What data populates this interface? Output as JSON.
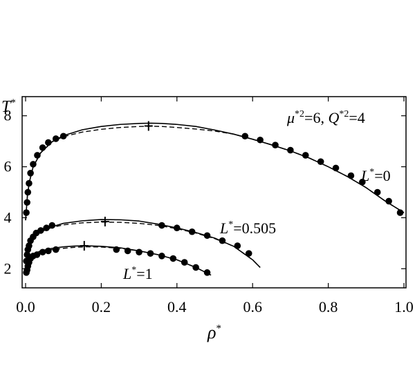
{
  "chart_data": {
    "type": "scatter",
    "xlabel": "ρ",
    "xlabel_sup": "*",
    "ylabel": "T",
    "ylabel_sup": "*",
    "xlim": [
      0.0,
      1.0
    ],
    "ylim": [
      1.25,
      8.75
    ],
    "x_ticks": [
      0.0,
      0.2,
      0.4,
      0.6,
      0.8,
      1.0
    ],
    "x_tick_labels": [
      "0.0",
      "0.2",
      "0.4",
      "0.6",
      "0.8",
      "1.0"
    ],
    "y_ticks": [
      2,
      4,
      6,
      8
    ],
    "y_tick_labels": [
      "2",
      "4",
      "6",
      "8"
    ],
    "grid": false,
    "annotation": {
      "mu_sym": "μ",
      "mu_sup": "*2",
      "mu_val": "=6, ",
      "q_sym": "Q",
      "q_sup": "*2",
      "q_val": "=4"
    },
    "series": [
      {
        "label_sym": "L",
        "label_sup": "*",
        "label_val": "=0",
        "points": [
          [
            0.002,
            4.2
          ],
          [
            0.004,
            4.6
          ],
          [
            0.006,
            5.0
          ],
          [
            0.009,
            5.35
          ],
          [
            0.013,
            5.75
          ],
          [
            0.02,
            6.1
          ],
          [
            0.031,
            6.45
          ],
          [
            0.045,
            6.75
          ],
          [
            0.06,
            6.95
          ],
          [
            0.08,
            7.1
          ],
          [
            0.1,
            7.2
          ],
          [
            0.58,
            7.2
          ],
          [
            0.62,
            7.05
          ],
          [
            0.66,
            6.85
          ],
          [
            0.7,
            6.65
          ],
          [
            0.74,
            6.45
          ],
          [
            0.78,
            6.2
          ],
          [
            0.82,
            5.95
          ],
          [
            0.86,
            5.65
          ],
          [
            0.89,
            5.4
          ],
          [
            0.93,
            5.0
          ],
          [
            0.96,
            4.65
          ],
          [
            0.99,
            4.2
          ]
        ],
        "curve_x": [
          0.0,
          0.005,
          0.01,
          0.02,
          0.04,
          0.07,
          0.1,
          0.15,
          0.2,
          0.25,
          0.3,
          0.33,
          0.36,
          0.4,
          0.45,
          0.5,
          0.55,
          0.6,
          0.65,
          0.7,
          0.75,
          0.8,
          0.85,
          0.9,
          0.95,
          1.0
        ],
        "curve_solid": [
          3.9,
          4.9,
          5.4,
          6.0,
          6.55,
          6.98,
          7.22,
          7.45,
          7.58,
          7.66,
          7.7,
          7.71,
          7.7,
          7.66,
          7.58,
          7.44,
          7.28,
          7.08,
          6.86,
          6.62,
          6.34,
          6.0,
          5.62,
          5.18,
          4.66,
          4.2
        ],
        "curve_dashed": [
          3.9,
          4.9,
          5.4,
          6.0,
          6.55,
          6.98,
          7.18,
          7.36,
          7.47,
          7.54,
          7.58,
          7.59,
          7.58,
          7.54,
          7.48,
          7.4,
          7.28,
          7.08,
          6.86,
          6.62,
          6.34,
          6.0,
          5.62,
          5.18,
          4.66,
          4.2
        ],
        "critical_point": [
          0.325,
          7.6
        ]
      },
      {
        "label_sym": "L",
        "label_sup": "*",
        "label_val": "=0.505",
        "points": [
          [
            0.002,
            2.3
          ],
          [
            0.004,
            2.55
          ],
          [
            0.006,
            2.75
          ],
          [
            0.009,
            2.9
          ],
          [
            0.013,
            3.1
          ],
          [
            0.02,
            3.25
          ],
          [
            0.028,
            3.4
          ],
          [
            0.04,
            3.5
          ],
          [
            0.055,
            3.6
          ],
          [
            0.07,
            3.7
          ],
          [
            0.36,
            3.7
          ],
          [
            0.4,
            3.6
          ],
          [
            0.44,
            3.45
          ],
          [
            0.48,
            3.3
          ],
          [
            0.52,
            3.1
          ],
          [
            0.56,
            2.9
          ],
          [
            0.59,
            2.6
          ]
        ],
        "curve_x": [
          0.0,
          0.005,
          0.01,
          0.02,
          0.04,
          0.07,
          0.1,
          0.15,
          0.2,
          0.25,
          0.3,
          0.35,
          0.4,
          0.45,
          0.5,
          0.55,
          0.6,
          0.62
        ],
        "curve_solid": [
          1.9,
          2.6,
          2.9,
          3.2,
          3.45,
          3.65,
          3.78,
          3.88,
          3.93,
          3.92,
          3.87,
          3.75,
          3.6,
          3.42,
          3.2,
          2.88,
          2.35,
          2.05
        ],
        "curve_dashed": [
          1.9,
          2.6,
          2.9,
          3.2,
          3.45,
          3.62,
          3.72,
          3.8,
          3.83,
          3.82,
          3.78,
          3.7,
          3.57,
          3.4,
          3.18,
          2.88,
          2.35,
          2.05
        ],
        "critical_point": [
          0.21,
          3.85
        ]
      },
      {
        "label_sym": "L",
        "label_sup": "*",
        "label_val": "=1",
        "points": [
          [
            0.002,
            1.85
          ],
          [
            0.004,
            1.95
          ],
          [
            0.006,
            2.1
          ],
          [
            0.009,
            2.25
          ],
          [
            0.013,
            2.4
          ],
          [
            0.02,
            2.5
          ],
          [
            0.03,
            2.55
          ],
          [
            0.045,
            2.65
          ],
          [
            0.06,
            2.7
          ],
          [
            0.08,
            2.75
          ],
          [
            0.24,
            2.75
          ],
          [
            0.27,
            2.7
          ],
          [
            0.3,
            2.65
          ],
          [
            0.33,
            2.6
          ],
          [
            0.36,
            2.5
          ],
          [
            0.39,
            2.4
          ],
          [
            0.42,
            2.25
          ],
          [
            0.45,
            2.05
          ],
          [
            0.48,
            1.85
          ]
        ],
        "curve_x": [
          0.0,
          0.005,
          0.01,
          0.02,
          0.04,
          0.07,
          0.1,
          0.13,
          0.16,
          0.2,
          0.25,
          0.3,
          0.35,
          0.4,
          0.45,
          0.49
        ],
        "curve_solid": [
          1.75,
          2.2,
          2.4,
          2.57,
          2.7,
          2.8,
          2.86,
          2.89,
          2.9,
          2.88,
          2.82,
          2.7,
          2.55,
          2.35,
          2.05,
          1.75
        ],
        "curve_dashed": [
          1.75,
          2.2,
          2.4,
          2.57,
          2.68,
          2.75,
          2.8,
          2.84,
          2.86,
          2.85,
          2.8,
          2.7,
          2.55,
          2.35,
          2.05,
          1.75
        ],
        "critical_point": [
          0.155,
          2.9
        ]
      }
    ]
  }
}
